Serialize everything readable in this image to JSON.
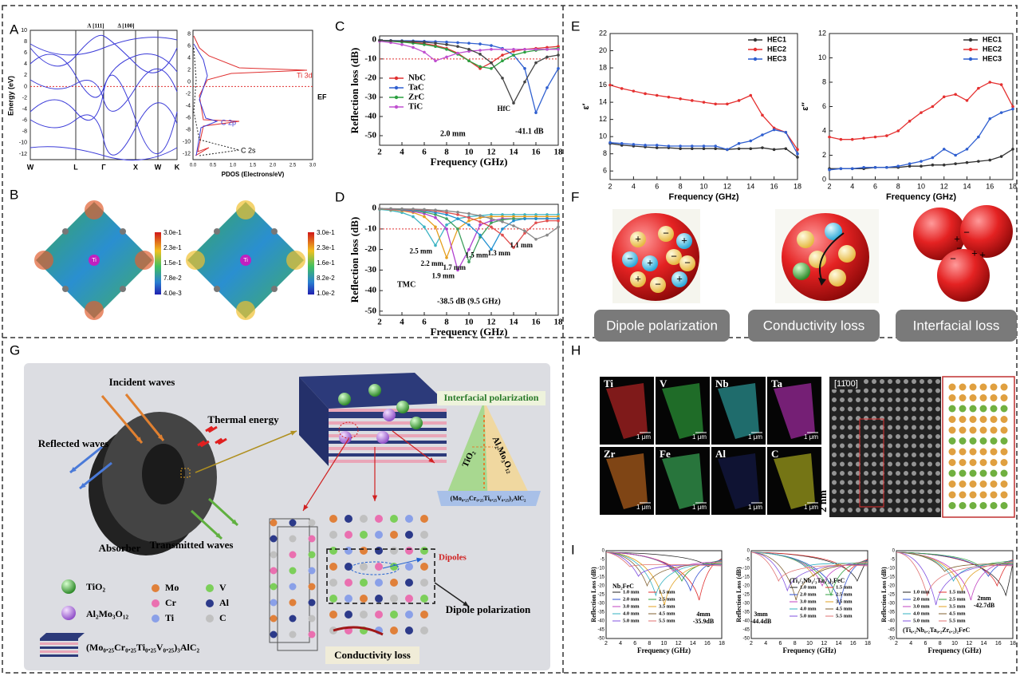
{
  "chart_data": [
    {
      "type": "line",
      "label": "C",
      "x": [
        2,
        3,
        4,
        5,
        6,
        7,
        8,
        9,
        10,
        11,
        12,
        13,
        14,
        15,
        16,
        17,
        18
      ],
      "series": [
        {
          "name": "NbC",
          "color": "#e03030",
          "values": [
            -0.5,
            -0.8,
            -1,
            -1.5,
            -2,
            -3,
            -4.5,
            -7,
            -11,
            -15,
            -12,
            -8,
            -6,
            -5,
            -4.5,
            -4,
            -3.5
          ]
        },
        {
          "name": "TaC",
          "color": "#3060d0",
          "values": [
            -0.3,
            -0.4,
            -0.5,
            -0.6,
            -0.8,
            -1,
            -1.2,
            -1.5,
            -1.8,
            -2.2,
            -3,
            -4.5,
            -8,
            -15,
            -38,
            -25,
            -15
          ]
        },
        {
          "name": "ZrC",
          "color": "#2ca040",
          "values": [
            -0.5,
            -0.8,
            -1.2,
            -1.8,
            -2.5,
            -3.5,
            -5,
            -7.5,
            -11,
            -14,
            -15,
            -11,
            -8,
            -6.5,
            -5.5,
            -5,
            -4.5
          ]
        },
        {
          "name": "TiC",
          "color": "#c050d0",
          "values": [
            -0.8,
            -1.5,
            -2.5,
            -4,
            -6.5,
            -11,
            -9,
            -7,
            -6,
            -5.5,
            -5,
            -5,
            -5,
            -5,
            -5,
            -5,
            -5
          ]
        },
        {
          "name": "HfC",
          "color": "#444444",
          "inline_label": true,
          "values": [
            -0.3,
            -0.5,
            -0.7,
            -1,
            -1.3,
            -1.8,
            -2.5,
            -3.5,
            -5,
            -7.5,
            -12,
            -20,
            -33,
            -22,
            -12,
            -9,
            -8
          ]
        }
      ],
      "xlim": [
        2,
        18
      ],
      "xticks": [
        2,
        4,
        6,
        8,
        10,
        12,
        14,
        16,
        18
      ],
      "ylim": [
        -55,
        2
      ],
      "yticks": [
        0,
        -10,
        -20,
        -30,
        -40,
        -50
      ],
      "xlabel": "Frequency (GHz)",
      "ylabel": "Reflection loss (dB)",
      "threshold": -10,
      "legend": "left",
      "annotations": [
        "2.0 mm",
        "-41.1 dB"
      ]
    },
    {
      "type": "line",
      "label": "D",
      "x": [
        2,
        3,
        4,
        5,
        6,
        7,
        8,
        9,
        10,
        11,
        12,
        13,
        14,
        15,
        16,
        17,
        18
      ],
      "series": [
        {
          "name": "2.5 mm",
          "color": "#3bb3c3",
          "inline_label": true,
          "values": [
            -0.5,
            -1,
            -2,
            -4,
            -9,
            -18,
            -8,
            -5,
            -4,
            -3.5,
            -3,
            -3,
            -3,
            -3,
            -3,
            -3,
            -3
          ]
        },
        {
          "name": "2.2 mm",
          "color": "#e6a020",
          "inline_label": true,
          "values": [
            -0.3,
            -0.6,
            -1.2,
            -2,
            -4,
            -9,
            -24,
            -10,
            -6,
            -4.5,
            -4,
            -4,
            -4,
            -4,
            -4,
            -4,
            -4
          ]
        },
        {
          "name": "1.9 mm",
          "color": "#b040d0",
          "inline_label": true,
          "values": [
            -0.2,
            -0.4,
            -0.8,
            -1.5,
            -2.5,
            -4.5,
            -10,
            -30,
            -20,
            -8,
            -6,
            -5,
            -5,
            -5,
            -5,
            -5,
            -5
          ]
        },
        {
          "name": "1.7 mm",
          "color": "#40a060",
          "inline_label": true,
          "values": [
            -0.2,
            -0.3,
            -0.6,
            -1,
            -1.8,
            -3,
            -5,
            -10,
            -26,
            -14,
            -7,
            -5.5,
            -5,
            -5,
            -5,
            -5,
            -5
          ]
        },
        {
          "name": "1.5 mm",
          "color": "#2090d0",
          "inline_label": true,
          "values": [
            -0.1,
            -0.2,
            -0.4,
            -0.7,
            -1.2,
            -2,
            -3,
            -5,
            -8,
            -13,
            -20,
            -10,
            -6,
            -5,
            -5,
            -5,
            -5
          ]
        },
        {
          "name": "1.3 mm",
          "color": "#e05050",
          "inline_label": true,
          "values": [
            -0.1,
            -0.2,
            -0.3,
            -0.5,
            -0.8,
            -1.2,
            -2,
            -3,
            -4.5,
            -6.5,
            -9,
            -13,
            -19,
            -12,
            -7,
            -6,
            -6
          ]
        },
        {
          "name": "1.1 mm",
          "color": "#888888",
          "inline_label": true,
          "values": [
            -0.1,
            -0.1,
            -0.2,
            -0.3,
            -0.5,
            -0.8,
            -1.2,
            -1.8,
            -2.5,
            -3.5,
            -5,
            -6.5,
            -8.5,
            -11,
            -15,
            -13,
            -9
          ]
        }
      ],
      "xlim": [
        2,
        18
      ],
      "xticks": [
        2,
        4,
        6,
        8,
        10,
        12,
        14,
        16,
        18
      ],
      "ylim": [
        -52,
        2
      ],
      "yticks": [
        0,
        -10,
        -20,
        -30,
        -40,
        -50
      ],
      "xlabel": "Frequency (GHz)",
      "ylabel": "Reflection loss (dB)",
      "threshold": -10,
      "annotations": [
        "TMC",
        "-38.5 dB (9.5 GHz)"
      ]
    },
    {
      "type": "line",
      "label": "E",
      "x": [
        2,
        3,
        4,
        5,
        6,
        7,
        8,
        9,
        10,
        11,
        12,
        13,
        14,
        15,
        16,
        17,
        18
      ],
      "series": [
        {
          "name": "HEC1",
          "color": "#333333",
          "values": [
            9.2,
            9.0,
            8.9,
            8.8,
            8.7,
            8.7,
            8.6,
            8.6,
            8.6,
            8.6,
            8.5,
            8.6,
            8.6,
            8.7,
            8.5,
            8.6,
            7.6
          ]
        },
        {
          "name": "HEC2",
          "color": "#e53030",
          "values": [
            16,
            15.6,
            15.3,
            15,
            14.8,
            14.6,
            14.4,
            14.2,
            14,
            13.8,
            13.8,
            14.2,
            14.8,
            12.5,
            11,
            10.5,
            8.5
          ]
        },
        {
          "name": "HEC3",
          "color": "#2f5fd0",
          "values": [
            9.3,
            9.2,
            9.1,
            9.0,
            9.0,
            8.9,
            8.9,
            8.9,
            8.9,
            8.9,
            8.5,
            9.2,
            9.5,
            10.2,
            10.8,
            10.5,
            8
          ]
        }
      ],
      "xlim": [
        2,
        18
      ],
      "xticks": [
        2,
        4,
        6,
        8,
        10,
        12,
        14,
        16,
        18
      ],
      "ylim": [
        5,
        22
      ],
      "yticks": [
        6,
        8,
        10,
        12,
        14,
        16,
        18,
        20,
        22
      ],
      "xlabel": "Frequency (GHz)",
      "ylabel": "ε′",
      "legend": "upper right"
    },
    {
      "type": "line",
      "x": [
        2,
        3,
        4,
        5,
        6,
        7,
        8,
        9,
        10,
        11,
        12,
        13,
        14,
        15,
        16,
        17,
        18
      ],
      "series": [
        {
          "name": "HEC1",
          "color": "#333333",
          "values": [
            0.9,
            0.9,
            0.9,
            0.9,
            1.0,
            1.0,
            1.0,
            1.1,
            1.1,
            1.2,
            1.2,
            1.3,
            1.4,
            1.5,
            1.6,
            1.9,
            2.5
          ]
        },
        {
          "name": "HEC2",
          "color": "#e53030",
          "values": [
            3.5,
            3.3,
            3.3,
            3.4,
            3.5,
            3.6,
            4.0,
            4.8,
            5.5,
            6.0,
            6.8,
            7.0,
            6.5,
            7.5,
            8.0,
            7.8,
            6.0
          ]
        },
        {
          "name": "HEC3",
          "color": "#2f5fd0",
          "values": [
            0.8,
            0.9,
            0.9,
            1.0,
            1.0,
            1.0,
            1.1,
            1.3,
            1.5,
            1.8,
            2.5,
            2.0,
            2.5,
            3.5,
            5.0,
            5.5,
            5.8
          ]
        }
      ],
      "xlim": [
        2,
        18
      ],
      "xticks": [
        2,
        4,
        6,
        8,
        10,
        12,
        14,
        16,
        18
      ],
      "ylim": [
        0,
        12
      ],
      "yticks": [
        0,
        2,
        4,
        6,
        8,
        10,
        12
      ],
      "xlabel": "Frequency (GHz)",
      "ylabel": "ε″",
      "legend": "upper right"
    }
  ],
  "figure": {
    "A": {
      "label": "A",
      "directions": [
        "Λ [111]",
        "Δ [100]"
      ],
      "kpoints": [
        "W",
        "L",
        "Γ",
        "X",
        "W",
        "K"
      ],
      "yticks": [
        "10",
        "8",
        "6",
        "4",
        "2",
        "0",
        "-2",
        "-4",
        "-6",
        "-8",
        "-10",
        "-12"
      ],
      "ylabel": "Energy (eV)",
      "pdos_yticks": [
        "8",
        "6",
        "4",
        "2",
        "0",
        "-2",
        "-4",
        "-6",
        "-8",
        "-10",
        "-12"
      ],
      "pdos_xticks": [
        "0.0",
        "0.5",
        "1.0",
        "1.5",
        "2.0",
        "2.5",
        "3.0"
      ],
      "xlabel": "PDOS (Electrons/eV)",
      "orbitals": [
        "Ti 3d",
        "C 2p",
        "C 2s"
      ],
      "fermi": "EF"
    },
    "B": {
      "label": "B",
      "atom": "Ti",
      "colorbars": [
        [
          "3.0e-1",
          "2.3e-1",
          "1.5e-1",
          "7.8e-2",
          "4.0e-3"
        ],
        [
          "3.0e-1",
          "2.3e-1",
          "1.6e-1",
          "8.2e-2",
          "1.0e-2"
        ]
      ]
    },
    "F": {
      "label": "F",
      "captions": [
        "Dipole polarization",
        "Conductivity loss",
        "Interfacial loss"
      ]
    },
    "G": {
      "label": "G",
      "incident": "Incident waves",
      "thermal": "Thermal energy",
      "reflected": "Reflected waves",
      "absorber": "Absorber",
      "transmitted": "Transmitted waves",
      "interfacial": "Interfacial polarization",
      "triangle": [
        "TiO₂",
        "Al₂Mo₃O₁₂",
        "(Mo₀.₂₅Cr₀.₂₅Ti₀.₂₅V₀.₂₅)₃AlC₂"
      ],
      "dipoles": "Dipoles",
      "dipole_polarization": "Dipole polarization",
      "conductivity": "Conductivity loss",
      "legend": [
        "TiO₂",
        "Al₂Mo₃O₁₂",
        "Mo",
        "V",
        "Cr",
        "Al",
        "Ti",
        "C",
        "(Mo₀.₂₅Cr₀.₂₅Ti₀.₂₅V₀.₂₅)₃AlC₂"
      ]
    },
    "H": {
      "label": "H",
      "elements": [
        "Ti",
        "V",
        "Nb",
        "Ta",
        "Zr",
        "Fe",
        "Al",
        "C"
      ],
      "scale": "1 μm",
      "direction": "[11̄00]",
      "scale_hr": "2 nm"
    },
    "I": {
      "label": "I",
      "ylabel": "Reflection Loss (dB)",
      "xlabel": "Frequency (GHz)",
      "yticks": [
        "0",
        "-5",
        "-10",
        "-15",
        "-20",
        "-25",
        "-30",
        "-35",
        "-40",
        "-45",
        "-50"
      ],
      "xticks": [
        "2",
        "4",
        "6",
        "8",
        "10",
        "12",
        "14",
        "16",
        "18"
      ],
      "thicknesses": [
        "1.0 mm",
        "1.5 mm",
        "2.0 mm",
        "2.5 mm",
        "3.0 mm",
        "3.5 mm",
        "4.0 mm",
        "4.5 mm",
        "5.0 mm",
        "5.5 mm"
      ],
      "plots": [
        {
          "title": "Nb₂FeC",
          "note": [
            "4mm",
            "-35.9dB"
          ]
        },
        {
          "title": "(Ti₁/₃Nb₁/₃Ta₁/₃)₂FeC",
          "note": [
            "3mm",
            "-44.4dB"
          ]
        },
        {
          "title": "(Ti₀.₂Nb₀.₂Ta₀.₂Zr₀.₂)₂FeC",
          "note": [
            "2mm",
            "-42.7dB"
          ]
        }
      ]
    }
  }
}
